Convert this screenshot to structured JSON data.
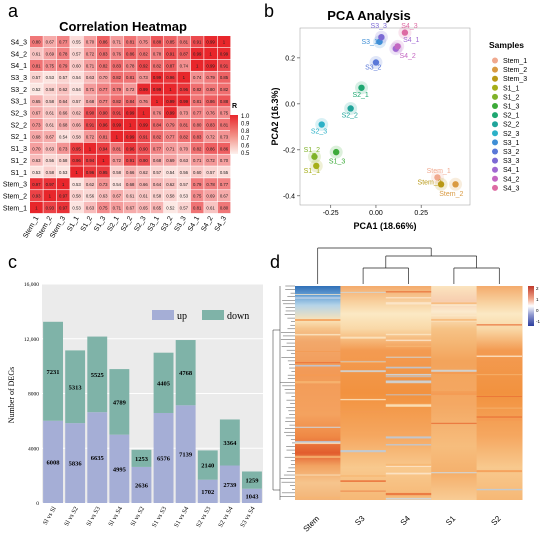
{
  "panels": {
    "a": "a",
    "b": "b",
    "c": "c",
    "d": "d"
  },
  "chart_data": [
    {
      "type": "heatmap",
      "title": "Correlation Heatmap",
      "rows_top_to_bottom": [
        "S4_3",
        "S4_2",
        "S4_1",
        "S3_3",
        "S3_2",
        "S3_1",
        "S2_3",
        "S2_2",
        "S2_1",
        "S1_3",
        "S1_2",
        "S1_1",
        "Stem_3",
        "Stem_2",
        "Stem_1"
      ],
      "columns": [
        "Stem_1",
        "Stem_2",
        "Stem_3",
        "S1_1",
        "S1_2",
        "S1_3",
        "S2_1",
        "S2_2",
        "S2_3",
        "S3_1",
        "S3_2",
        "S3_3",
        "S4_1",
        "S4_2",
        "S4_3"
      ],
      "values": [
        [
          0.8,
          0.67,
          0.77,
          0.55,
          0.7,
          0.86,
          0.71,
          0.81,
          0.75,
          0.88,
          0.85,
          0.81,
          0.91,
          0.99,
          1
        ],
        [
          0.61,
          0.69,
          0.78,
          0.57,
          0.72,
          0.83,
          0.76,
          0.86,
          0.82,
          0.78,
          0.91,
          0.87,
          0.99,
          1,
          0.99
        ],
        [
          0.81,
          0.75,
          0.79,
          0.6,
          0.71,
          0.82,
          0.83,
          0.78,
          0.92,
          0.82,
          0.87,
          0.74,
          1,
          0.99,
          0.91
        ],
        [
          0.57,
          0.53,
          0.57,
          0.54,
          0.63,
          0.7,
          0.82,
          0.81,
          0.73,
          0.99,
          0.96,
          1,
          0.74,
          0.79,
          0.85
        ],
        [
          0.52,
          0.58,
          0.62,
          0.54,
          0.71,
          0.77,
          0.79,
          0.72,
          0.99,
          0.99,
          1,
          0.96,
          0.82,
          0.8,
          0.82
        ],
        [
          0.65,
          0.58,
          0.64,
          0.57,
          0.68,
          0.77,
          0.82,
          0.84,
          0.76,
          1,
          0.99,
          0.99,
          0.81,
          0.86,
          0.88
        ],
        [
          0.67,
          0.61,
          0.66,
          0.62,
          0.9,
          0.9,
          0.91,
          0.99,
          1,
          0.76,
          0.99,
          0.73,
          0.77,
          0.76,
          0.75
        ],
        [
          0.73,
          0.61,
          0.68,
          0.66,
          0.91,
          0.96,
          0.99,
          1,
          0.99,
          0.84,
          0.79,
          0.81,
          0.8,
          0.83,
          0.81
        ],
        [
          0.68,
          0.67,
          0.54,
          0.58,
          0.72,
          0.81,
          1,
          0.99,
          0.91,
          0.82,
          0.77,
          0.82,
          0.83,
          0.72,
          0.73
        ],
        [
          0.7,
          0.63,
          0.73,
          0.95,
          1,
          0.94,
          0.81,
          0.96,
          0.9,
          0.77,
          0.71,
          0.7,
          0.82,
          0.86,
          0.86
        ],
        [
          0.63,
          0.56,
          0.58,
          0.96,
          0.94,
          1,
          0.72,
          0.91,
          0.9,
          0.68,
          0.69,
          0.63,
          0.71,
          0.72,
          0.7
        ],
        [
          0.53,
          0.58,
          0.53,
          1,
          0.96,
          0.95,
          0.58,
          0.66,
          0.62,
          0.57,
          0.54,
          0.56,
          0.6,
          0.57,
          0.55
        ],
        [
          0.97,
          0.97,
          1,
          0.53,
          0.62,
          0.73,
          0.54,
          0.68,
          0.66,
          0.64,
          0.62,
          0.57,
          0.79,
          0.78,
          0.77
        ],
        [
          0.93,
          1,
          0.97,
          0.58,
          0.56,
          0.63,
          0.67,
          0.61,
          0.61,
          0.58,
          0.58,
          0.53,
          0.75,
          0.69,
          0.67
        ],
        [
          1,
          0.93,
          0.97,
          0.53,
          0.63,
          0.75,
          0.71,
          0.67,
          0.65,
          0.65,
          0.52,
          0.57,
          0.81,
          0.61,
          0.8
        ]
      ],
      "colorbar": {
        "title": "R",
        "ticks": [
          "1.0",
          "0.9",
          "0.8",
          "0.7",
          "0.6",
          "0.5"
        ],
        "range": [
          0.5,
          1.0
        ],
        "low_color": "#fdf0ec",
        "high_color": "#e8262b"
      }
    },
    {
      "type": "scatter",
      "title": "PCA Analysis",
      "xlabel": "PCA1 (18.66%)",
      "ylabel": "PCA2 (16.3%)",
      "xlim": [
        -0.42,
        0.52
      ],
      "ylim": [
        -0.44,
        0.33
      ],
      "xticks": [
        "-0.25",
        "0.00",
        "0.25"
      ],
      "yticks": [
        "0.2",
        "0.0",
        "-0.2",
        "-0.4"
      ],
      "legend_title": "Samples",
      "legend_position": "right",
      "series": [
        {
          "name": "Stem_1",
          "color": "#f0a98f",
          "x": 0.34,
          "y": -0.32
        },
        {
          "name": "Stem_2",
          "color": "#d99a42",
          "x": 0.44,
          "y": -0.35
        },
        {
          "name": "Stem_3",
          "color": "#b99916",
          "x": 0.36,
          "y": -0.35
        },
        {
          "name": "S1_1",
          "color": "#a5ae17",
          "x": -0.33,
          "y": -0.27
        },
        {
          "name": "S1_2",
          "color": "#7fb229",
          "x": -0.34,
          "y": -0.23
        },
        {
          "name": "S1_3",
          "color": "#3caa39",
          "x": -0.22,
          "y": -0.21
        },
        {
          "name": "S2_1",
          "color": "#1fa771",
          "x": -0.08,
          "y": 0.07
        },
        {
          "name": "S2_2",
          "color": "#20a49a",
          "x": -0.14,
          "y": -0.02
        },
        {
          "name": "S2_3",
          "color": "#2cb1c7",
          "x": -0.3,
          "y": -0.09
        },
        {
          "name": "S3_1",
          "color": "#3f8fd6",
          "x": 0.02,
          "y": 0.27
        },
        {
          "name": "S3_2",
          "color": "#5a78d8",
          "x": 0.0,
          "y": 0.18
        },
        {
          "name": "S3_3",
          "color": "#7c6ad4",
          "x": 0.03,
          "y": 0.29
        },
        {
          "name": "S4_1",
          "color": "#a069d2",
          "x": 0.11,
          "y": 0.24
        },
        {
          "name": "S4_2",
          "color": "#c467c2",
          "x": 0.12,
          "y": 0.25
        },
        {
          "name": "S4_3",
          "color": "#dd6ba3",
          "x": 0.16,
          "y": 0.31
        }
      ],
      "point_labels": [
        {
          "text": "Stem_1",
          "x": 0.28,
          "y": -0.3
        },
        {
          "text": "Stem_3",
          "x": 0.23,
          "y": -0.35
        },
        {
          "text": "Stem_2",
          "x": 0.35,
          "y": -0.4
        },
        {
          "text": "S1_2",
          "x": -0.4,
          "y": -0.21
        },
        {
          "text": "S1_1",
          "x": -0.4,
          "y": -0.3
        },
        {
          "text": "S1_3",
          "x": -0.26,
          "y": -0.26
        },
        {
          "text": "S2_1",
          "x": -0.13,
          "y": 0.03
        },
        {
          "text": "S2_2",
          "x": -0.19,
          "y": -0.06
        },
        {
          "text": "S2_3",
          "x": -0.36,
          "y": -0.13
        },
        {
          "text": "S3_3",
          "x": -0.03,
          "y": 0.33
        },
        {
          "text": "S3_1",
          "x": -0.08,
          "y": 0.26
        },
        {
          "text": "S3_2",
          "x": -0.06,
          "y": 0.15
        },
        {
          "text": "S4_3",
          "x": 0.14,
          "y": 0.33
        },
        {
          "text": "S4_1",
          "x": 0.15,
          "y": 0.27
        },
        {
          "text": "S4_2",
          "x": 0.13,
          "y": 0.2
        }
      ]
    },
    {
      "type": "bar",
      "stacked": true,
      "ylabel": "Number of DEGs",
      "ylim": [
        0,
        16000
      ],
      "yticks": [
        "0",
        "4000",
        "8000",
        "12,000",
        "16,000"
      ],
      "categories": [
        "Sl vs Sl",
        "Sl vs S2",
        "Sl vs S3",
        "Sl vs S4",
        "Sl vs S2",
        "S1 vs S3",
        "S1 vs S4",
        "S2 vs S3",
        "S2 vs S4",
        "S3 vs S4"
      ],
      "series": [
        {
          "name": "up",
          "color": "#a5aed6",
          "values": [
            6008,
            5836,
            6635,
            4995,
            2636,
            6576,
            7139,
            1702,
            2739,
            1043
          ]
        },
        {
          "name": "down",
          "color": "#7fb3a8",
          "values": [
            7231,
            5313,
            5525,
            4789,
            1253,
            4405,
            4768,
            2140,
            3364,
            1259
          ]
        }
      ],
      "labels_up": [
        "6008",
        "5836",
        "6635",
        "4995",
        "2636",
        "6576",
        "7139",
        "1702",
        "2739",
        "1043"
      ],
      "labels_down": [
        "7231",
        "5313",
        "5525",
        "4789",
        "1253",
        "4405",
        "4768",
        "2140",
        "3364",
        "1259"
      ],
      "legend_position": "top-right"
    },
    {
      "type": "heatmap",
      "columns": [
        "Stem",
        "S3",
        "S4",
        "S1",
        "S2"
      ],
      "colorbar": {
        "ticks": [
          "2",
          "1",
          "0",
          "-1"
        ],
        "high_color": "#c0392b",
        "mid_color": "#ffffff",
        "low_color": "#2c3e9e"
      },
      "dendrogram": "top and left"
    }
  ]
}
